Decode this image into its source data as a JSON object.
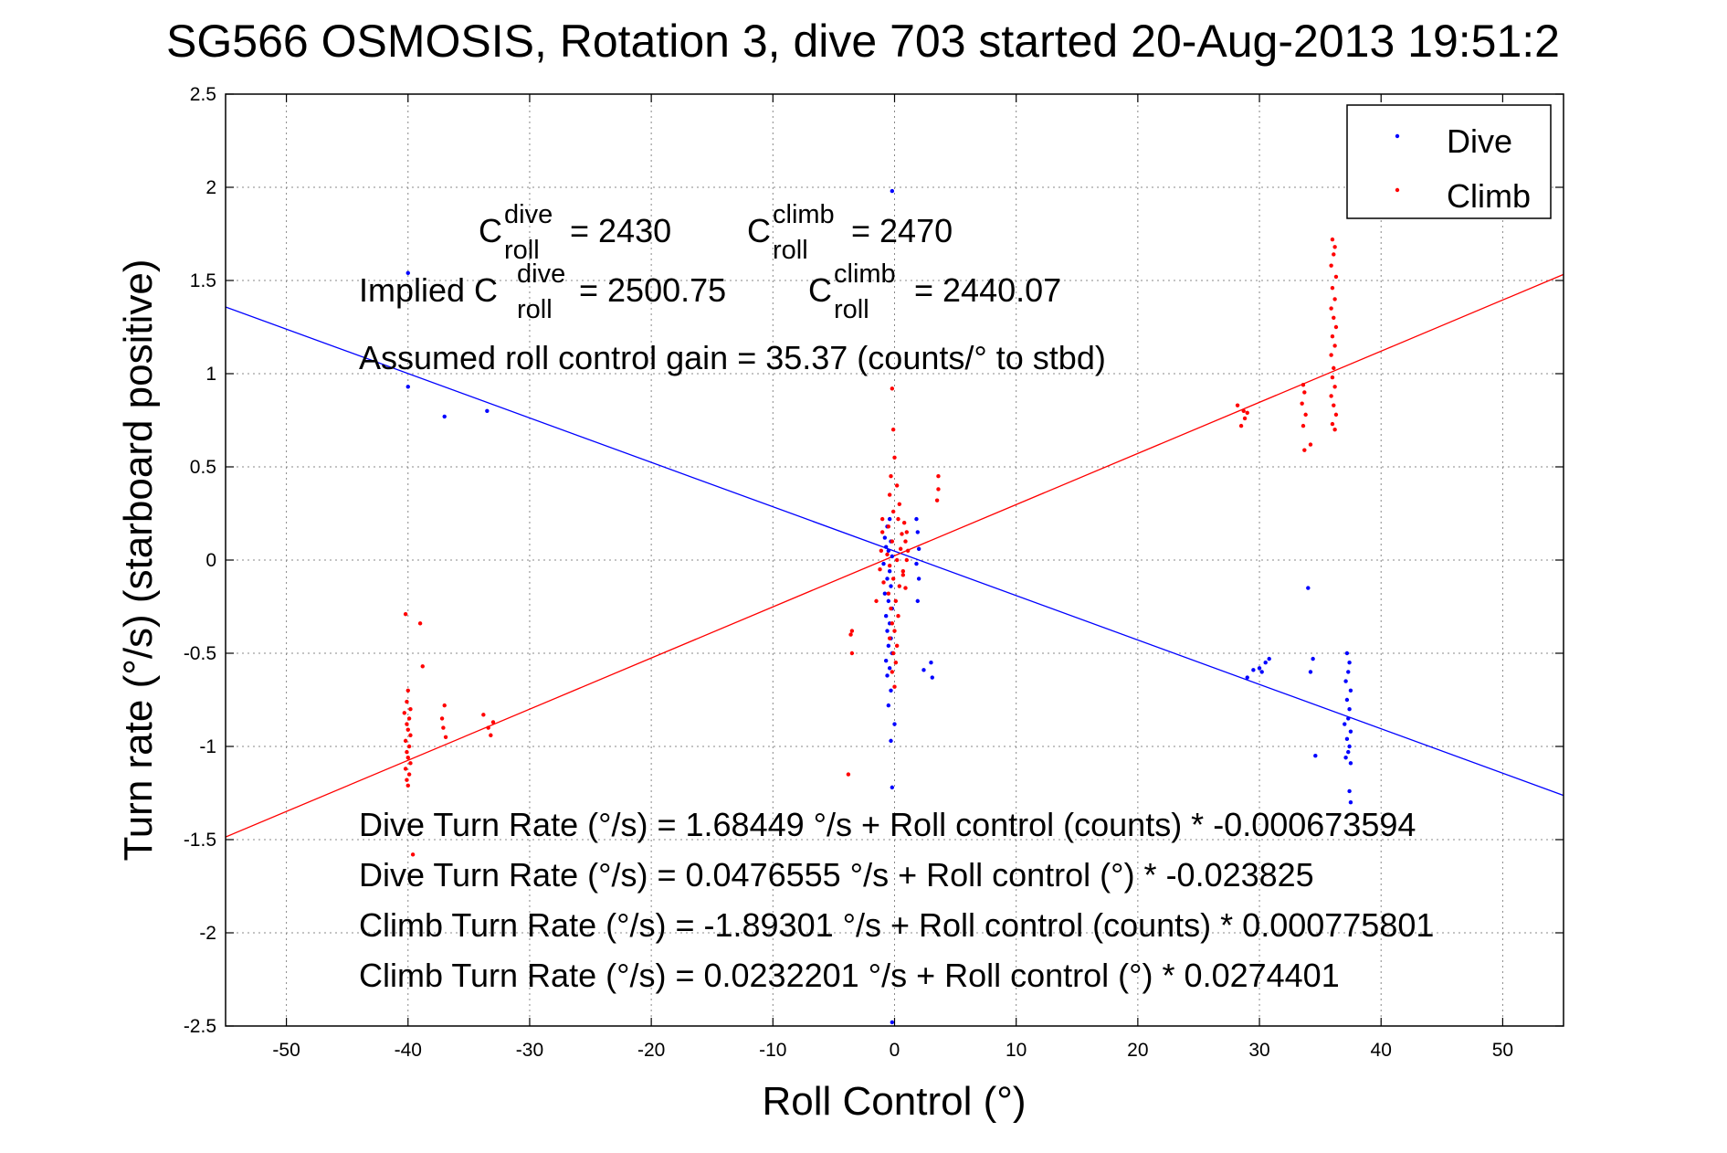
{
  "chart_data": {
    "type": "scatter",
    "title": "SG566 OSMOSIS, Rotation 3, dive 703 started 20-Aug-2013 19:51:2",
    "xlabel": "Roll Control (°)",
    "ylabel": "Turn rate (°/s) (starboard positive)",
    "xlim": [
      -55,
      55
    ],
    "ylim": [
      -2.5,
      2.5
    ],
    "xticks": [
      -50,
      -40,
      -30,
      -20,
      -10,
      0,
      10,
      20,
      30,
      40,
      50
    ],
    "xtick_labels": [
      "-50",
      "-40",
      "-30",
      "-20",
      "-10",
      "0",
      "10",
      "20",
      "30",
      "40",
      "50"
    ],
    "yticks": [
      -2.5,
      -2,
      -1.5,
      -1,
      -0.5,
      0,
      0.5,
      1,
      1.5,
      2,
      2.5
    ],
    "ytick_labels": [
      "-2.5",
      "-2",
      "-1.5",
      "-1",
      "-0.5",
      "0",
      "0.5",
      "1",
      "1.5",
      "2",
      "2.5"
    ],
    "grid": "dotted",
    "legend_position": "top-right",
    "series": [
      {
        "name": "Dive",
        "color": "#0000ff",
        "marker": "dot",
        "points": [
          [
            -40.0,
            1.54
          ],
          [
            -40.0,
            0.93
          ],
          [
            -37.0,
            0.77
          ],
          [
            -33.5,
            0.8
          ],
          [
            -0.2,
            1.98
          ],
          [
            -0.4,
            0.22
          ],
          [
            -0.6,
            0.18
          ],
          [
            -0.8,
            0.12
          ],
          [
            -0.3,
            0.1
          ],
          [
            -0.7,
            0.07
          ],
          [
            -0.5,
            0.05
          ],
          [
            -0.2,
            0.02
          ],
          [
            -0.9,
            -0.02
          ],
          [
            -0.4,
            -0.06
          ],
          [
            -0.6,
            -0.1
          ],
          [
            -0.3,
            -0.14
          ],
          [
            -0.8,
            -0.18
          ],
          [
            -0.5,
            -0.22
          ],
          [
            -0.2,
            -0.26
          ],
          [
            -0.7,
            -0.3
          ],
          [
            -0.4,
            -0.34
          ],
          [
            -0.6,
            -0.38
          ],
          [
            -0.3,
            -0.42
          ],
          [
            -0.5,
            -0.46
          ],
          [
            -0.2,
            -0.5
          ],
          [
            -0.7,
            -0.54
          ],
          [
            -0.4,
            -0.58
          ],
          [
            -0.6,
            -0.62
          ],
          [
            -0.3,
            -0.7
          ],
          [
            -0.5,
            -0.78
          ],
          [
            0.0,
            -0.88
          ],
          [
            -0.3,
            -0.97
          ],
          [
            -0.2,
            -1.22
          ],
          [
            -0.2,
            -2.48
          ],
          [
            1.8,
            0.22
          ],
          [
            1.9,
            0.15
          ],
          [
            2.0,
            0.06
          ],
          [
            1.8,
            -0.02
          ],
          [
            2.0,
            -0.1
          ],
          [
            1.9,
            -0.22
          ],
          [
            2.4,
            -0.59
          ],
          [
            3.0,
            -0.55
          ],
          [
            3.1,
            -0.63
          ],
          [
            29.0,
            -0.63
          ],
          [
            29.5,
            -0.59
          ],
          [
            30.0,
            -0.58
          ],
          [
            30.5,
            -0.55
          ],
          [
            30.8,
            -0.53
          ],
          [
            30.2,
            -0.6
          ],
          [
            34.0,
            -0.15
          ],
          [
            34.2,
            -0.6
          ],
          [
            34.4,
            -0.53
          ],
          [
            34.6,
            -1.05
          ],
          [
            37.2,
            -0.5
          ],
          [
            37.4,
            -0.55
          ],
          [
            37.3,
            -0.6
          ],
          [
            37.1,
            -0.65
          ],
          [
            37.5,
            -0.7
          ],
          [
            37.2,
            -0.75
          ],
          [
            37.4,
            -0.8
          ],
          [
            37.3,
            -0.85
          ],
          [
            37.0,
            -0.88
          ],
          [
            37.5,
            -0.92
          ],
          [
            37.2,
            -0.96
          ],
          [
            37.4,
            -1.0
          ],
          [
            37.3,
            -1.03
          ],
          [
            37.1,
            -1.06
          ],
          [
            37.5,
            -1.09
          ],
          [
            37.4,
            -1.24
          ],
          [
            37.5,
            -1.3
          ]
        ]
      },
      {
        "name": "Climb",
        "color": "#ff0000",
        "marker": "dot",
        "points": [
          [
            -0.2,
            0.92
          ],
          [
            -0.1,
            0.7
          ],
          [
            0.0,
            0.55
          ],
          [
            -0.3,
            0.45
          ],
          [
            0.2,
            0.4
          ],
          [
            -0.4,
            0.35
          ],
          [
            0.4,
            0.3
          ],
          [
            -0.1,
            0.26
          ],
          [
            0.3,
            0.22
          ],
          [
            -0.5,
            0.18
          ],
          [
            0.6,
            0.14
          ],
          [
            -0.2,
            0.1
          ],
          [
            0.5,
            0.06
          ],
          [
            -0.6,
            0.03
          ],
          [
            0.2,
            0.0
          ],
          [
            -0.4,
            -0.03
          ],
          [
            0.7,
            -0.06
          ],
          [
            -0.1,
            -0.1
          ],
          [
            0.4,
            -0.14
          ],
          [
            -0.5,
            -0.18
          ],
          [
            0.1,
            -0.22
          ],
          [
            -0.3,
            -0.26
          ],
          [
            0.3,
            -0.3
          ],
          [
            -0.2,
            -0.34
          ],
          [
            0.0,
            -0.38
          ],
          [
            -0.4,
            -0.42
          ],
          [
            0.2,
            -0.46
          ],
          [
            -0.1,
            -0.5
          ],
          [
            0.1,
            -0.55
          ],
          [
            -0.2,
            -0.6
          ],
          [
            0.0,
            -0.68
          ],
          [
            0.8,
            0.2
          ],
          [
            0.9,
            0.1
          ],
          [
            1.0,
            0.0
          ],
          [
            0.7,
            -0.08
          ],
          [
            1.1,
            0.05
          ],
          [
            0.9,
            -0.15
          ],
          [
            1.0,
            0.15
          ],
          [
            -1.0,
            0.15
          ],
          [
            -1.1,
            0.05
          ],
          [
            -1.2,
            -0.05
          ],
          [
            -0.9,
            -0.12
          ],
          [
            -1.0,
            0.22
          ],
          [
            -1.5,
            -0.22
          ],
          [
            -3.5,
            -0.38
          ],
          [
            -3.6,
            -0.4
          ],
          [
            -3.5,
            -0.5
          ],
          [
            -3.8,
            -1.15
          ],
          [
            3.6,
            0.45
          ],
          [
            3.6,
            0.38
          ],
          [
            3.5,
            0.32
          ],
          [
            -40.2,
            -0.29
          ],
          [
            -40.0,
            -0.7
          ],
          [
            -40.1,
            -0.76
          ],
          [
            -39.8,
            -0.8
          ],
          [
            -40.3,
            -0.82
          ],
          [
            -39.9,
            -0.85
          ],
          [
            -40.1,
            -0.88
          ],
          [
            -40.0,
            -0.91
          ],
          [
            -39.8,
            -0.94
          ],
          [
            -40.2,
            -0.97
          ],
          [
            -39.9,
            -1.0
          ],
          [
            -40.1,
            -1.03
          ],
          [
            -40.0,
            -1.06
          ],
          [
            -39.8,
            -1.09
          ],
          [
            -40.2,
            -1.12
          ],
          [
            -39.9,
            -1.15
          ],
          [
            -40.1,
            -1.18
          ],
          [
            -40.0,
            -1.21
          ],
          [
            -39.6,
            -1.58
          ],
          [
            -39.0,
            -0.34
          ],
          [
            -38.8,
            -0.57
          ],
          [
            -37.0,
            -0.78
          ],
          [
            -37.2,
            -0.85
          ],
          [
            -37.1,
            -0.9
          ],
          [
            -36.9,
            -0.95
          ],
          [
            -33.8,
            -0.83
          ],
          [
            -33.0,
            -0.87
          ],
          [
            -33.4,
            -0.9
          ],
          [
            -33.2,
            -0.94
          ],
          [
            28.2,
            0.83
          ],
          [
            28.7,
            0.8
          ],
          [
            29.0,
            0.79
          ],
          [
            28.8,
            0.76
          ],
          [
            28.5,
            0.72
          ],
          [
            33.6,
            0.94
          ],
          [
            33.7,
            0.9
          ],
          [
            33.5,
            0.84
          ],
          [
            33.8,
            0.78
          ],
          [
            33.6,
            0.72
          ],
          [
            33.7,
            0.59
          ],
          [
            34.2,
            0.62
          ],
          [
            36.0,
            1.72
          ],
          [
            36.2,
            1.68
          ],
          [
            36.1,
            1.64
          ],
          [
            35.9,
            1.58
          ],
          [
            36.3,
            1.52
          ],
          [
            36.0,
            1.46
          ],
          [
            36.2,
            1.4
          ],
          [
            35.9,
            1.35
          ],
          [
            36.1,
            1.3
          ],
          [
            36.3,
            1.25
          ],
          [
            36.0,
            1.2
          ],
          [
            36.2,
            1.15
          ],
          [
            35.9,
            1.1
          ],
          [
            36.1,
            1.03
          ],
          [
            36.0,
            0.98
          ],
          [
            36.2,
            0.93
          ],
          [
            35.9,
            0.88
          ],
          [
            36.1,
            0.83
          ],
          [
            36.3,
            0.78
          ],
          [
            36.0,
            0.73
          ],
          [
            36.2,
            0.7
          ]
        ]
      }
    ],
    "fit_lines": [
      {
        "series": "Dive",
        "color": "#0000ff",
        "intercept": 0.0476555,
        "slope": -0.023825
      },
      {
        "series": "Climb",
        "color": "#ff0000",
        "intercept": 0.0232201,
        "slope": 0.0274401
      }
    ],
    "legend": {
      "dive_label": "Dive",
      "climb_label": "Climb"
    },
    "annotations": {
      "c_dive_base": "C",
      "c_dive_sup": "dive",
      "c_dive_sub": "roll",
      "c_dive_value": "= 2430",
      "c_climb_base": "C",
      "c_climb_sup": "climb",
      "c_climb_sub": "roll",
      "c_climb_value": "= 2470",
      "implied_prefix": "Implied C",
      "implied_dive_sup": "dive",
      "implied_dive_sub": "roll",
      "implied_dive_value": "= 2500.75",
      "implied_climb_base": "C",
      "implied_climb_sup": "climb",
      "implied_climb_sub": "roll",
      "implied_climb_value": "= 2440.07",
      "gain": "Assumed roll control gain = 35.37 (counts/° to stbd)",
      "eq1": "Dive Turn Rate (°/s) = 1.68449 °/s + Roll control (counts) * -0.000673594",
      "eq2": "Dive Turn Rate (°/s) = 0.0476555 °/s + Roll control (°) * -0.023825",
      "eq3": "Climb Turn Rate (°/s) = -1.89301 °/s + Roll control (counts) * 0.000775801",
      "eq4": "Climb Turn Rate (°/s) = 0.0232201 °/s + Roll control (°) * 0.0274401"
    }
  }
}
